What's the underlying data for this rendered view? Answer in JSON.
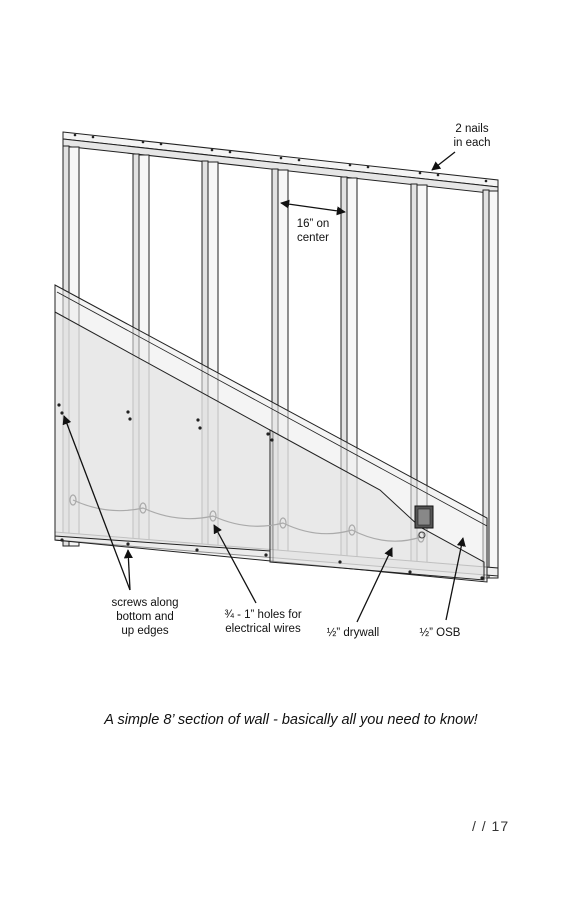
{
  "labels": {
    "nails": "2 nails\nin each",
    "spacing": "16” on\ncenter",
    "screws": "screws along\nbottom and\nup edges",
    "holes": "¾ - 1” holes for\nelectrical wires",
    "drywall": "½” drywall",
    "osb": "½” OSB"
  },
  "caption": "A simple 8’ section of wall - basically all you need to know!",
  "page_number": "/ /  17"
}
